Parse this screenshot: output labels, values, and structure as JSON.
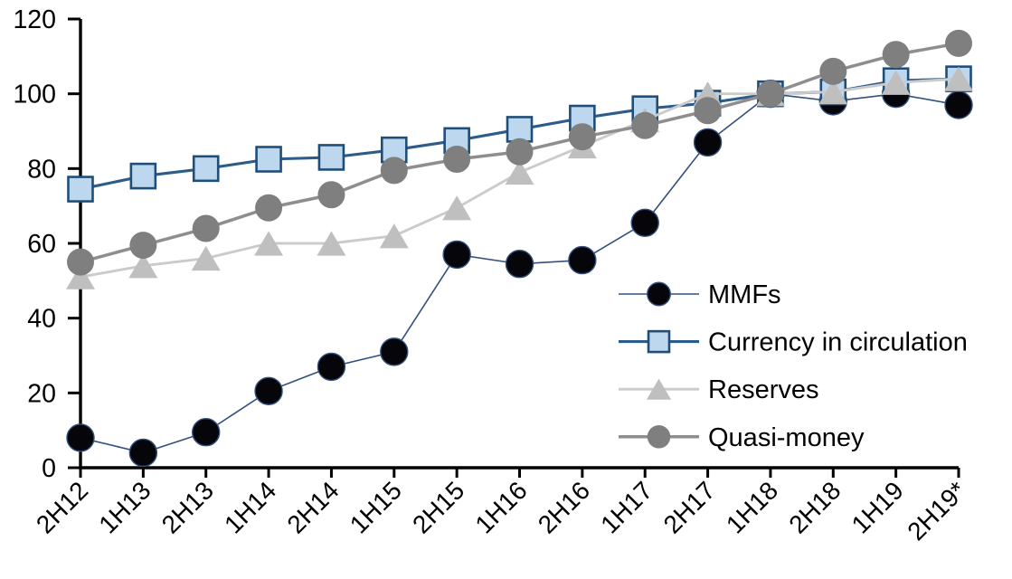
{
  "chart_data": {
    "type": "line",
    "title": "",
    "xlabel": "",
    "ylabel": "",
    "grid": false,
    "legend_position": "inside-right",
    "axis_color": "#000000",
    "ylim": [
      0,
      120
    ],
    "ytick_step": 20,
    "ytick_labels": [
      "0",
      "20",
      "40",
      "60",
      "80",
      "100",
      "120"
    ],
    "categories": [
      "2H12",
      "1H13",
      "2H13",
      "1H14",
      "2H14",
      "1H15",
      "2H15",
      "1H16",
      "2H16",
      "1H17",
      "2H17",
      "1H18",
      "2H18",
      "1H19",
      "2H19*"
    ],
    "series": [
      {
        "name": "MMFs",
        "marker": "circle",
        "values": [
          8,
          4,
          9.5,
          20.5,
          27,
          31,
          57,
          54.5,
          55.5,
          65.5,
          87,
          100,
          98,
          100,
          97
        ],
        "line_color": "#33507F",
        "line_width": 1.6,
        "marker_fill": "#06060a",
        "marker_stroke": "#33507F",
        "marker_stroke_width": 1.4,
        "marker_size": 30
      },
      {
        "name": "Currency in circulation",
        "marker": "square",
        "values": [
          74.5,
          78,
          80,
          82.5,
          83,
          85,
          87.5,
          90.5,
          93.5,
          96,
          97.5,
          100,
          100.5,
          103.5,
          104
        ],
        "line_color": "#2C5C8A",
        "line_width": 3.1,
        "marker_fill": "#BDD7EE",
        "marker_stroke": "#1F4E79",
        "marker_stroke_width": 2.6,
        "marker_size": 27
      },
      {
        "name": "Reserves",
        "marker": "triangle",
        "values": [
          51,
          54,
          56,
          60,
          60,
          62,
          69.5,
          79,
          86,
          93,
          100,
          100,
          100.5,
          103,
          104
        ],
        "line_color": "#CBCBCB",
        "line_width": 2.9,
        "marker_fill": "#BFBFBF",
        "marker_stroke": "none",
        "marker_stroke_width": 0,
        "marker_size": 32
      },
      {
        "name": "Quasi-money",
        "marker": "circle",
        "values": [
          55,
          59.5,
          64,
          69.5,
          73,
          79.5,
          82.5,
          84.5,
          88.5,
          91.5,
          95.5,
          100,
          106,
          110.5,
          113.5
        ],
        "line_color": "#8E8E8E",
        "line_width": 3.5,
        "marker_fill": "#7F7F7F",
        "marker_stroke": "none",
        "marker_stroke_width": 0,
        "marker_size": 30
      }
    ]
  }
}
